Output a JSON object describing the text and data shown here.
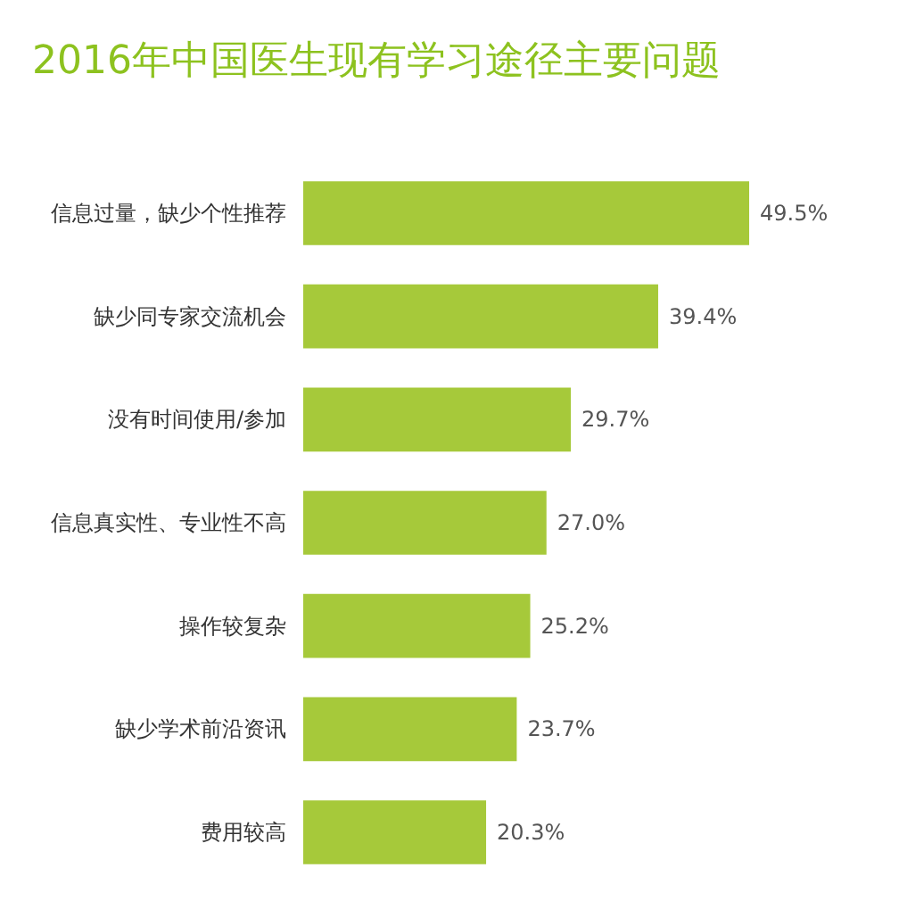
{
  "chart_data": {
    "type": "bar",
    "orientation": "horizontal",
    "title": "2016年中国医生现有学习途径主要问题",
    "categories": [
      "信息过量，缺少个性推荐",
      "缺少同专家交流机会",
      "没有时间使用/参加",
      "信息真实性、专业性不高",
      "操作较复杂",
      "缺少学术前沿资讯",
      "费用较高"
    ],
    "values": [
      49.5,
      39.4,
      29.7,
      27.0,
      25.2,
      23.7,
      20.3
    ],
    "value_labels": [
      "49.5%",
      "39.4%",
      "29.7%",
      "27.0%",
      "25.2%",
      "23.7%",
      "20.3%"
    ],
    "color": "#a6c93a"
  }
}
